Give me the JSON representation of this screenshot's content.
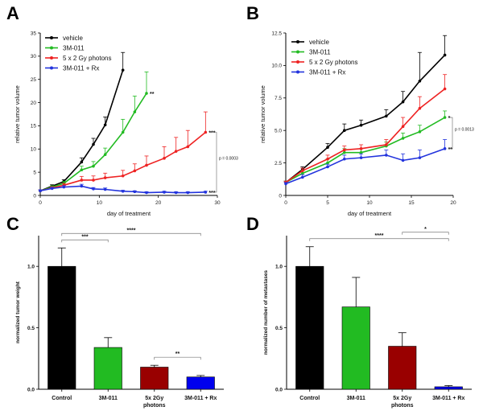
{
  "figure": {
    "panels": [
      "A",
      "B",
      "C",
      "D"
    ]
  },
  "chart_data": [
    {
      "id": "A",
      "type": "line",
      "xlabel": "day of treatment",
      "ylabel": "relative tumor volume",
      "xlim": [
        0,
        30
      ],
      "ylim": [
        0,
        35
      ],
      "xticks": [
        "0",
        "10",
        "20",
        "30"
      ],
      "yticks": [
        "0",
        "5",
        "10",
        "15",
        "20",
        "25",
        "30",
        "35"
      ],
      "legend_position": "top-left",
      "series": [
        {
          "name": "vehicle",
          "color": "#000000",
          "x": [
            0,
            2,
            4,
            7,
            9,
            11,
            14
          ],
          "y": [
            1.0,
            2.0,
            3.0,
            7.2,
            11.0,
            15.2,
            27.0
          ],
          "err": [
            0.2,
            0.3,
            0.4,
            0.9,
            1.3,
            1.7,
            3.8
          ]
        },
        {
          "name": "3M-011",
          "color": "#22bb22",
          "x": [
            0,
            2,
            4,
            7,
            9,
            11,
            14,
            16,
            18
          ],
          "y": [
            1.0,
            1.8,
            2.6,
            5.5,
            6.3,
            8.8,
            13.6,
            18.0,
            22.0
          ],
          "err": [
            0.2,
            0.3,
            0.4,
            0.8,
            1.0,
            1.4,
            2.8,
            3.4,
            4.6
          ]
        },
        {
          "name": "5 x 2 Gy photons",
          "color": "#ee2222",
          "x": [
            0,
            2,
            4,
            7,
            9,
            11,
            14,
            16,
            18,
            21,
            23,
            25,
            28
          ],
          "y": [
            1.0,
            1.6,
            2.2,
            3.3,
            3.3,
            3.8,
            4.2,
            5.3,
            6.5,
            8.0,
            9.5,
            10.5,
            13.6
          ],
          "err": [
            0.2,
            0.3,
            0.4,
            0.8,
            0.9,
            1.0,
            1.2,
            1.5,
            2.0,
            2.5,
            3.0,
            3.5,
            4.4
          ]
        },
        {
          "name": "3M-011 + Rx",
          "color": "#2233dd",
          "x": [
            0,
            2,
            4,
            7,
            9,
            11,
            14,
            16,
            18,
            21,
            23,
            25,
            28
          ],
          "y": [
            1.0,
            1.5,
            1.8,
            2.0,
            1.4,
            1.3,
            0.9,
            0.8,
            0.6,
            0.7,
            0.6,
            0.6,
            0.7
          ],
          "err": [
            0.2,
            0.2,
            0.3,
            0.4,
            0.3,
            0.3,
            0.2,
            0.2,
            0.2,
            0.2,
            0.2,
            0.2,
            0.2
          ]
        }
      ],
      "annotations": [
        {
          "text": "**",
          "series": "3M-011"
        },
        {
          "text": "***",
          "series": "5 x 2 Gy photons"
        },
        {
          "text": "***",
          "series": "3M-011 + Rx"
        },
        {
          "text": "p = 0.0003"
        }
      ]
    },
    {
      "id": "B",
      "type": "line",
      "xlabel": "day of treatment",
      "ylabel": "relative tumor volume",
      "xlim": [
        0,
        20
      ],
      "ylim": [
        0,
        12.5
      ],
      "xticks": [
        "0",
        "5",
        "10",
        "15",
        "20"
      ],
      "yticks": [
        "0",
        "2.5",
        "5.0",
        "7.5",
        "10.0",
        "12.5"
      ],
      "legend_position": "top-left",
      "series": [
        {
          "name": "vehicle",
          "color": "#000000",
          "x": [
            0,
            2,
            5,
            7,
            9,
            12,
            14,
            16,
            19
          ],
          "y": [
            1.0,
            2.0,
            3.7,
            5.0,
            5.4,
            6.1,
            7.2,
            8.8,
            10.8
          ],
          "err": [
            0.1,
            0.2,
            0.3,
            0.5,
            0.4,
            0.5,
            0.8,
            2.2,
            1.5
          ]
        },
        {
          "name": "3M-011",
          "color": "#22bb22",
          "x": [
            0,
            2,
            5,
            7,
            9,
            12,
            14,
            16,
            19
          ],
          "y": [
            1.0,
            1.7,
            2.5,
            3.3,
            3.3,
            3.8,
            4.4,
            4.9,
            6.0
          ],
          "err": [
            0.1,
            0.2,
            0.3,
            0.3,
            0.3,
            0.3,
            0.4,
            0.5,
            0.5
          ]
        },
        {
          "name": "5 x 2 Gy photons",
          "color": "#ee2222",
          "x": [
            0,
            2,
            5,
            7,
            9,
            12,
            14,
            16,
            19
          ],
          "y": [
            1.0,
            1.9,
            2.8,
            3.5,
            3.6,
            3.9,
            5.3,
            6.7,
            8.2
          ],
          "err": [
            0.1,
            0.2,
            0.3,
            0.3,
            0.3,
            0.4,
            0.7,
            0.9,
            1.1
          ]
        },
        {
          "name": "3M-011 + Rx",
          "color": "#2233dd",
          "x": [
            0,
            2,
            5,
            7,
            9,
            12,
            14,
            16,
            19
          ],
          "y": [
            0.9,
            1.4,
            2.2,
            2.8,
            2.9,
            3.1,
            2.7,
            2.9,
            3.6
          ],
          "err": [
            0.1,
            0.2,
            0.2,
            0.3,
            0.3,
            0.4,
            0.5,
            0.6,
            0.7
          ]
        }
      ],
      "annotations": [
        {
          "text": "*",
          "series": "3M-011"
        },
        {
          "text": "**",
          "series": "3M-011 + Rx"
        },
        {
          "text": "p = 0.0013"
        }
      ]
    },
    {
      "id": "C",
      "type": "bar",
      "ylabel": "normalized tumor weight",
      "ylim": [
        0,
        1.25
      ],
      "yticks": [
        "0.0",
        "0.5",
        "1.0"
      ],
      "categories": [
        "Control",
        "3M-011",
        "5x 2Gy\nphotons",
        "3M-011 + Rx"
      ],
      "values": [
        1.0,
        0.34,
        0.18,
        0.1
      ],
      "errors": [
        0.15,
        0.08,
        0.015,
        0.012
      ],
      "colors": [
        "#000000",
        "#22bb22",
        "#990000",
        "#0000ee"
      ],
      "comparisons": [
        {
          "from": 0,
          "to": 1,
          "label": "***"
        },
        {
          "from": 0,
          "to": 3,
          "label": "****"
        },
        {
          "from": 2,
          "to": 3,
          "label": "**"
        }
      ]
    },
    {
      "id": "D",
      "type": "bar",
      "ylabel": "normalized number of metastases",
      "ylim": [
        0,
        1.25
      ],
      "yticks": [
        "0.0",
        "0.5",
        "1.0"
      ],
      "categories": [
        "Control",
        "3M-011",
        "5x 2Gy\nphotons",
        "3M-011 + Rx"
      ],
      "values": [
        1.0,
        0.67,
        0.35,
        0.02
      ],
      "errors": [
        0.16,
        0.24,
        0.11,
        0.01
      ],
      "colors": [
        "#000000",
        "#22bb22",
        "#990000",
        "#0000ee"
      ],
      "comparisons": [
        {
          "from": 0,
          "to": 3,
          "label": "****"
        },
        {
          "from": 2,
          "to": 3,
          "label": "*"
        }
      ]
    }
  ]
}
